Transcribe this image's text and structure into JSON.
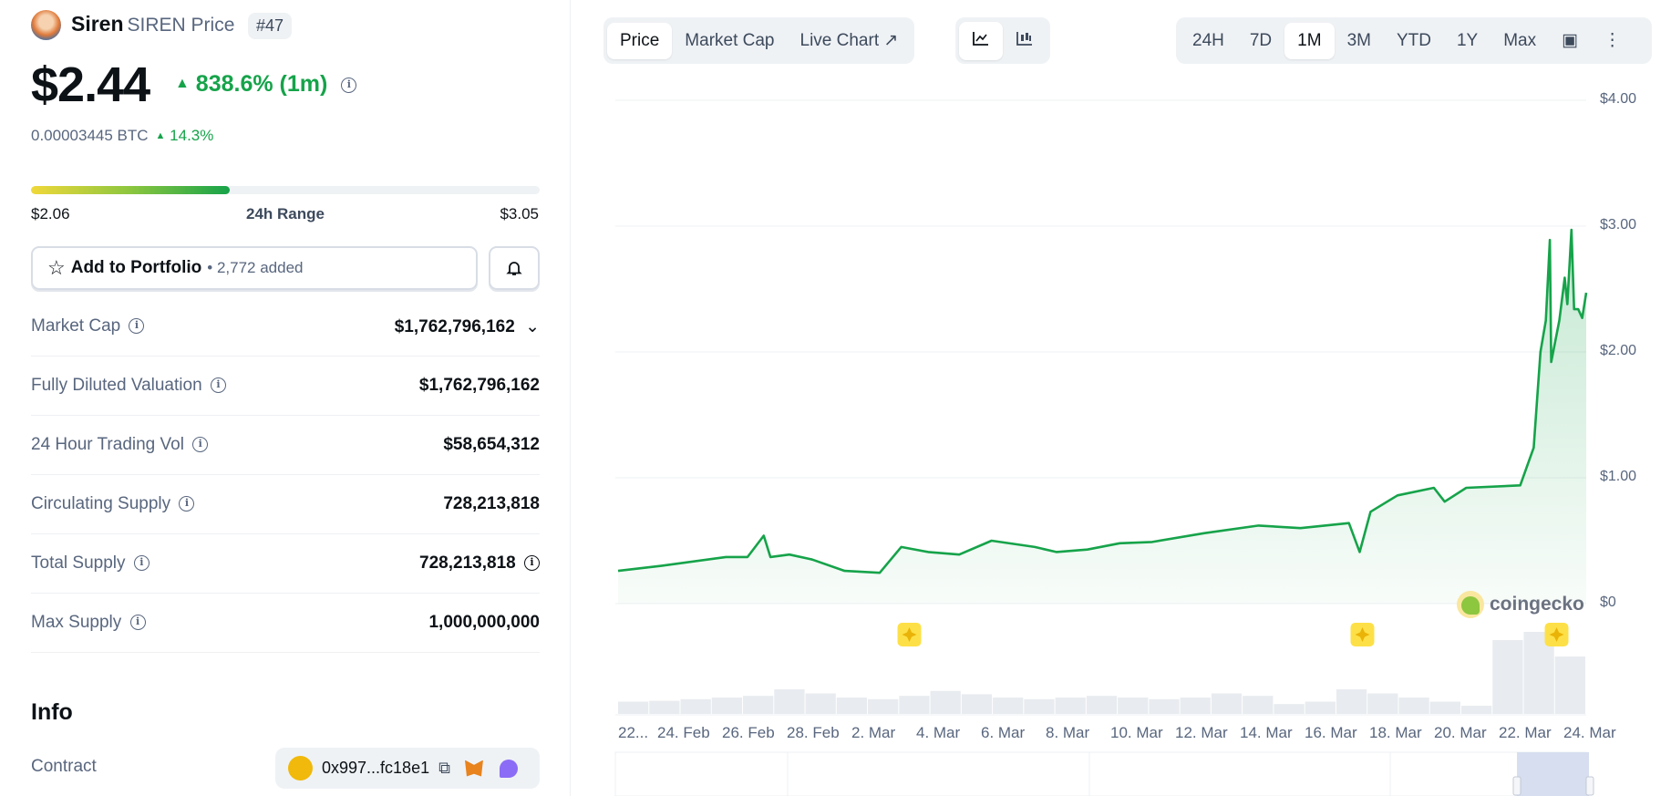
{
  "coin": {
    "name": "Siren",
    "symbol_label": "SIREN Price",
    "rank": "#47",
    "price": "$2.44",
    "change": "838.6% (1m)",
    "btc_price": "0.00003445 BTC",
    "btc_change": "14.3%"
  },
  "range": {
    "low": "$2.06",
    "label": "24h Range",
    "high": "$3.05",
    "position_percent": 39
  },
  "portfolio": {
    "label": "Add to Portfolio",
    "added": "2,772 added"
  },
  "stats": [
    {
      "label": "Market Cap",
      "value": "$1,762,796,162",
      "chevron": true
    },
    {
      "label": "Fully Diluted Valuation",
      "value": "$1,762,796,162"
    },
    {
      "label": "24 Hour Trading Vol",
      "value": "$58,654,312"
    },
    {
      "label": "Circulating Supply",
      "value": "728,213,818"
    },
    {
      "label": "Total Supply",
      "value": "728,213,818",
      "value_info": true
    },
    {
      "label": "Max Supply",
      "value": "1,000,000,000"
    }
  ],
  "info": {
    "heading": "Info",
    "contract_label": "Contract",
    "contract_address": "0x997...fc18e1"
  },
  "chart_tabs": [
    {
      "label": "Price",
      "active": true
    },
    {
      "label": "Market Cap"
    },
    {
      "label": "Live Chart",
      "external": true
    }
  ],
  "chart_types": [
    {
      "icon": "line-chart-icon",
      "active": true
    },
    {
      "icon": "candlestick-chart-icon"
    }
  ],
  "ranges": [
    {
      "label": "24H"
    },
    {
      "label": "7D"
    },
    {
      "label": "1M",
      "active": true
    },
    {
      "label": "3M"
    },
    {
      "label": "YTD"
    },
    {
      "label": "1Y"
    },
    {
      "label": "Max"
    }
  ],
  "watermark": "coingecko",
  "colors": {
    "line": "#16a34a",
    "accent_green": "#16a34a",
    "flag": "#fde047"
  },
  "chart_data": {
    "type": "line",
    "y_ticks": [
      "$4.00",
      "$3.00",
      "$2.00",
      "$1.00",
      "$0"
    ],
    "ylim": [
      0,
      4
    ],
    "x_ticks": [
      "22...",
      "24. Feb",
      "26. Feb",
      "28. Feb",
      "2. Mar",
      "4. Mar",
      "6. Mar",
      "8. Mar",
      "10. Mar",
      "12. Mar",
      "14. Mar",
      "16. Mar",
      "18. Mar",
      "20. Mar",
      "22. Mar",
      "24. Mar"
    ],
    "grid": true,
    "points": [
      [
        "Feb 22 00:00",
        0.26
      ],
      [
        "Feb 23 08:00",
        0.3
      ],
      [
        "Feb 25 08:00",
        0.37
      ],
      [
        "Feb 26 00:00",
        0.37
      ],
      [
        "Feb 26 12:00",
        0.54
      ],
      [
        "Feb 26 17:00",
        0.37
      ],
      [
        "Feb 27 07:00",
        0.39
      ],
      [
        "Feb 28 00:00",
        0.35
      ],
      [
        "Mar 1 00:00",
        0.26
      ],
      [
        "Mar 2 02:00",
        0.245
      ],
      [
        "Mar 2 18:00",
        0.45
      ],
      [
        "Mar 3 14:00",
        0.41
      ],
      [
        "Mar 4 13:00",
        0.39
      ],
      [
        "Mar 5 13:00",
        0.5
      ],
      [
        "Mar 6 21:00",
        0.45
      ],
      [
        "Mar 7 13:00",
        0.41
      ],
      [
        "Mar 8 12:00",
        0.43
      ],
      [
        "Mar 9 12:00",
        0.48
      ],
      [
        "Mar 10 12:00",
        0.49
      ],
      [
        "Mar 12 03:00",
        0.56
      ],
      [
        "Mar 13 19:00",
        0.62
      ],
      [
        "Mar 15 02:00",
        0.6
      ],
      [
        "Mar 16 14:00",
        0.64
      ],
      [
        "Mar 16 22:00",
        0.41
      ],
      [
        "Mar 17 06:00",
        0.73
      ],
      [
        "Mar 18 02:00",
        0.86
      ],
      [
        "Mar 19 05:00",
        0.92
      ],
      [
        "Mar 19 13:00",
        0.81
      ],
      [
        "Mar 20 05:00",
        0.92
      ],
      [
        "Mar 21 21:00",
        0.94
      ],
      [
        "Mar 22 07:00",
        1.24
      ],
      [
        "Mar 22 12:00",
        2.0
      ],
      [
        "Mar 22 16:00",
        2.25
      ],
      [
        "Mar 22 19:00",
        2.89
      ],
      [
        "Mar 22 20:00",
        1.92
      ],
      [
        "Mar 23 02:00",
        2.25
      ],
      [
        "Mar 23 06:00",
        2.59
      ],
      [
        "Mar 23 08:00",
        2.38
      ],
      [
        "Mar 23 11:00",
        2.97
      ],
      [
        "Mar 23 13:00",
        2.34
      ],
      [
        "Mar 23 16:00",
        2.34
      ],
      [
        "Mar 23 19:00",
        2.27
      ],
      [
        "Mar 23 22:00",
        2.47
      ]
    ],
    "event_flags": [
      "Mar 3 00:00",
      "Mar 17 00:00",
      "Mar 23 00:00"
    ],
    "volume_relative": [
      0.15,
      0.16,
      0.18,
      0.2,
      0.22,
      0.3,
      0.25,
      0.2,
      0.18,
      0.22,
      0.28,
      0.24,
      0.2,
      0.18,
      0.2,
      0.22,
      0.2,
      0.18,
      0.2,
      0.25,
      0.22,
      0.12,
      0.15,
      0.3,
      0.25,
      0.2,
      0.15,
      0.1,
      0.9,
      1.0,
      0.7
    ]
  }
}
